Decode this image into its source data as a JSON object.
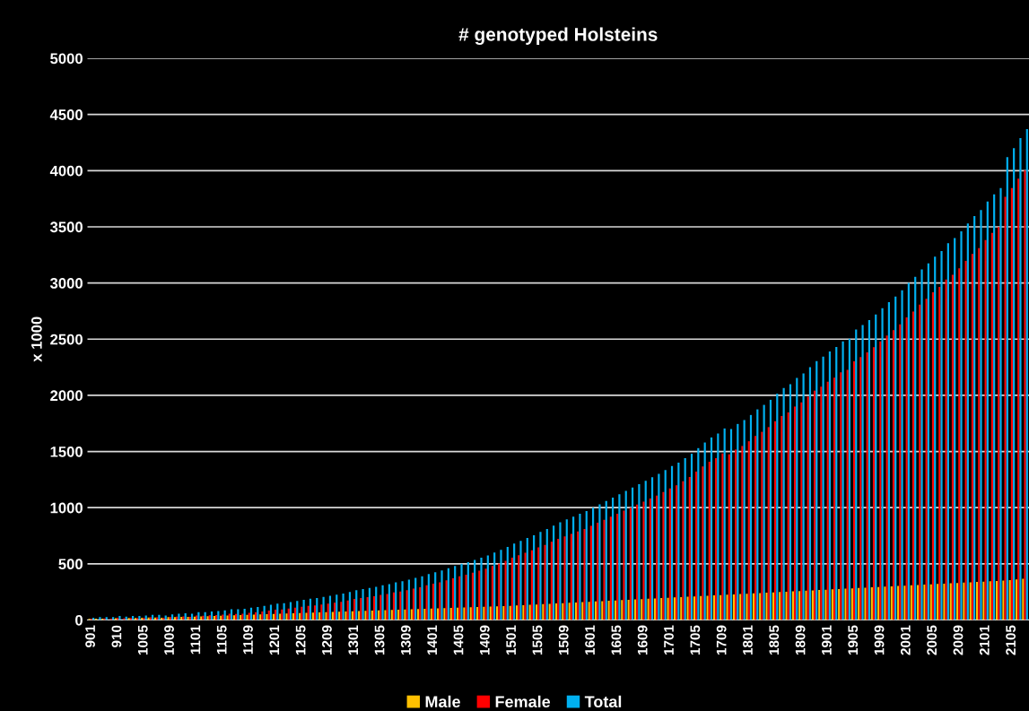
{
  "chart_data": {
    "type": "bar",
    "title": "# genotyped Holsteins",
    "ylabel": "x 1000",
    "categories": [
      "901",
      null,
      null,
      null,
      "910",
      null,
      null,
      null,
      "1005",
      null,
      null,
      null,
      "1009",
      null,
      null,
      null,
      "1101",
      null,
      null,
      null,
      "1105",
      null,
      null,
      null,
      "1109",
      null,
      null,
      null,
      "1201",
      null,
      null,
      null,
      "1205",
      null,
      null,
      null,
      "1209",
      null,
      null,
      null,
      "1301",
      null,
      null,
      null,
      "1305",
      null,
      null,
      null,
      "1309",
      null,
      null,
      null,
      "1401",
      null,
      null,
      null,
      "1405",
      null,
      null,
      null,
      "1409",
      null,
      null,
      null,
      "1501",
      null,
      null,
      null,
      "1505",
      null,
      null,
      null,
      "1509",
      null,
      null,
      null,
      "1601",
      null,
      null,
      null,
      "1605",
      null,
      null,
      null,
      "1609",
      null,
      null,
      null,
      "1701",
      null,
      null,
      null,
      "1705",
      null,
      null,
      null,
      "1709",
      null,
      null,
      null,
      "1801",
      null,
      null,
      null,
      "1805",
      null,
      null,
      null,
      "1809",
      null,
      null,
      null,
      "1901",
      null,
      null,
      null,
      "1905",
      null,
      null,
      null,
      "1909",
      null,
      null,
      null,
      "2001",
      null,
      null,
      null,
      "2005",
      null,
      null,
      null,
      "2009",
      null,
      null,
      null,
      "2101",
      null,
      null,
      null,
      "2105",
      null,
      null
    ],
    "series": [
      {
        "name": "Male",
        "color": "#ffc000",
        "values": [
          10,
          12,
          12,
          null,
          16,
          null,
          18,
          18,
          20,
          22,
          22,
          20,
          25,
          25,
          28,
          28,
          30,
          32,
          34,
          36,
          38,
          40,
          42,
          44,
          46,
          48,
          50,
          52,
          54,
          56,
          58,
          60,
          62,
          64,
          66,
          68,
          70,
          72,
          74,
          76,
          78,
          80,
          82,
          84,
          86,
          88,
          90,
          92,
          94,
          96,
          98,
          100,
          102,
          104,
          106,
          108,
          110,
          112,
          114,
          116,
          118,
          120,
          122,
          124,
          126,
          129,
          132,
          135,
          138,
          141,
          144,
          147,
          150,
          153,
          156,
          159,
          162,
          165,
          168,
          171,
          174,
          177,
          180,
          183,
          186,
          189,
          192,
          195,
          198,
          201,
          204,
          207,
          210,
          213,
          216,
          219,
          222,
          225,
          228,
          231,
          234,
          237,
          240,
          243,
          246,
          249,
          252,
          255,
          258,
          261,
          264,
          267,
          270,
          273,
          276,
          279,
          282,
          285,
          288,
          291,
          294,
          297,
          300,
          303,
          306,
          309,
          312,
          315,
          318,
          321,
          324,
          327,
          330,
          333,
          336,
          339,
          342,
          345,
          348,
          352,
          356,
          362,
          368
        ]
      },
      {
        "name": "Female",
        "color": "#ff0000",
        "values": [
          10,
          null,
          13,
          11,
          19,
          15,
          17,
          17,
          20,
          23,
          23,
          20,
          25,
          30,
          32,
          27,
          40,
          38,
          41,
          44,
          47,
          55,
          53,
          56,
          64,
          67,
          75,
          83,
          91,
          94,
          102,
          110,
          118,
          126,
          129,
          137,
          145,
          153,
          161,
          174,
          187,
          195,
          203,
          211,
          224,
          232,
          245,
          253,
          266,
          279,
          292,
          310,
          323,
          336,
          354,
          372,
          390,
          403,
          421,
          439,
          457,
          480,
          503,
          526,
          554,
          576,
          598,
          620,
          647,
          669,
          696,
          723,
          745,
          767,
          789,
          811,
          838,
          865,
          892,
          919,
          946,
          973,
          1000,
          1027,
          1054,
          1081,
          1108,
          1140,
          1172,
          1199,
          1236,
          1273,
          1320,
          1367,
          1409,
          1441,
          1483,
          1475,
          1517,
          1549,
          1591,
          1638,
          1675,
          1717,
          1769,
          1816,
          1848,
          1900,
          1937,
          1989,
          2041,
          2078,
          2120,
          2157,
          2204,
          2226,
          2303,
          2340,
          2382,
          2429,
          2481,
          2533,
          2580,
          2632,
          2694,
          2746,
          2808,
          2860,
          2917,
          2964,
          3031,
          3073,
          3130,
          3197,
          3259,
          3311,
          3383,
          3445,
          3497,
          3768,
          3844,
          3928,
          4002
        ]
      },
      {
        "name": "Total",
        "color": "#00b0f0",
        "values": [
          20,
          25,
          25,
          25,
          35,
          30,
          35,
          35,
          40,
          45,
          45,
          40,
          50,
          55,
          60,
          55,
          70,
          70,
          75,
          80,
          85,
          95,
          95,
          100,
          110,
          115,
          125,
          135,
          145,
          150,
          160,
          170,
          180,
          190,
          195,
          205,
          215,
          225,
          235,
          250,
          265,
          275,
          285,
          295,
          310,
          320,
          335,
          345,
          360,
          375,
          390,
          410,
          425,
          440,
          460,
          480,
          500,
          515,
          535,
          555,
          575,
          600,
          625,
          650,
          680,
          705,
          730,
          755,
          785,
          810,
          840,
          870,
          895,
          920,
          945,
          970,
          1000,
          1030,
          1060,
          1090,
          1120,
          1150,
          1180,
          1210,
          1240,
          1270,
          1300,
          1335,
          1370,
          1400,
          1440,
          1480,
          1530,
          1580,
          1625,
          1660,
          1705,
          1700,
          1745,
          1780,
          1825,
          1875,
          1915,
          1960,
          2015,
          2065,
          2100,
          2155,
          2195,
          2250,
          2305,
          2345,
          2390,
          2430,
          2480,
          2505,
          2585,
          2625,
          2670,
          2720,
          2775,
          2830,
          2880,
          2935,
          3000,
          3055,
          3120,
          3175,
          3235,
          3285,
          3355,
          3400,
          3460,
          3530,
          3595,
          3650,
          3725,
          3790,
          3845,
          4120,
          4200,
          4290,
          4370
        ]
      }
    ],
    "ylim": [
      0,
      5000
    ],
    "yticks": [
      0,
      500,
      1000,
      1500,
      2000,
      2500,
      3000,
      3500,
      4000,
      4500,
      5000
    ],
    "grid": "y",
    "legend": "bottom"
  }
}
